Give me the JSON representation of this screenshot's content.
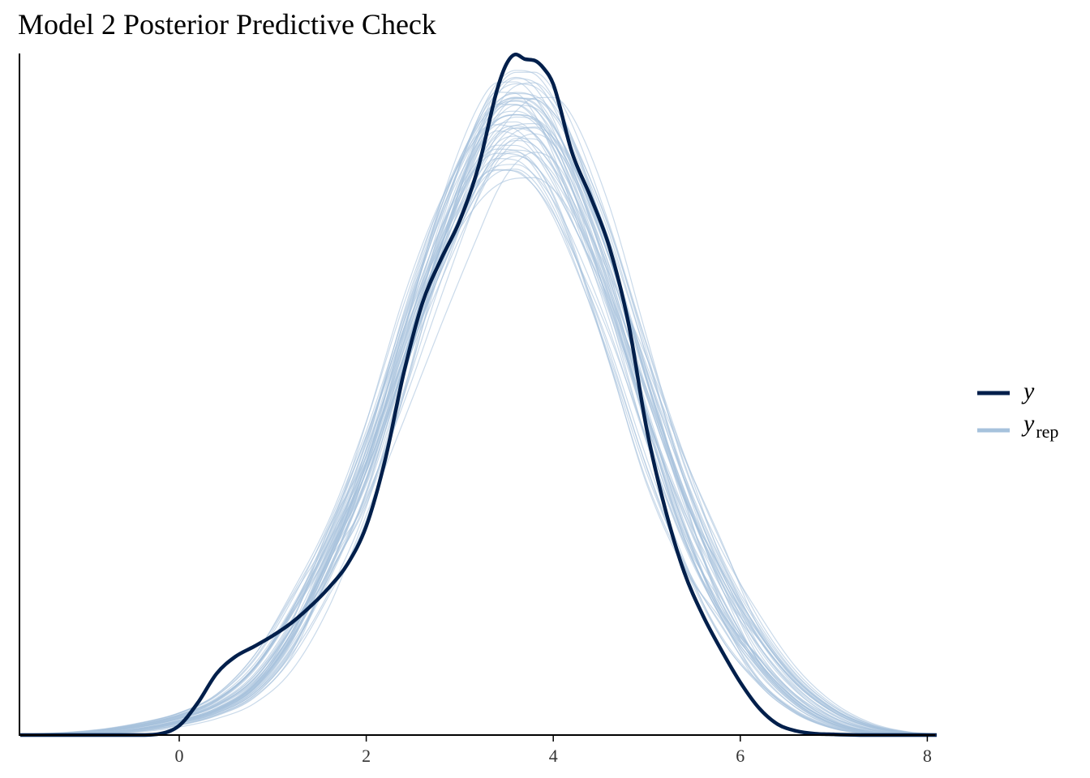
{
  "chart_data": {
    "type": "line",
    "title": "Model 2 Posterior Predictive Check",
    "xlabel": "",
    "ylabel": "",
    "xlim": [
      -1.7,
      8.1
    ],
    "ylim": [
      0,
      1.0
    ],
    "x_ticks": [
      0,
      2,
      4,
      6,
      8
    ],
    "x_tick_labels": [
      "0",
      "2",
      "4",
      "6",
      "8"
    ],
    "y_ticks_shown": false,
    "grid": false,
    "legend_position": "right",
    "legend": [
      {
        "label": "y",
        "subscript": "",
        "color": "#011f4b"
      },
      {
        "label": "y",
        "subscript": "rep",
        "color": "#a6c2dc"
      }
    ],
    "colors": {
      "y": "#011f4b",
      "y_rep": "#a6c2dc",
      "axis": "#000000"
    },
    "series": [
      {
        "name": "y",
        "role": "observed",
        "x": [
          -1.7,
          -0.4,
          -0.2,
          0.0,
          0.2,
          0.4,
          0.6,
          0.8,
          1.0,
          1.2,
          1.4,
          1.6,
          1.8,
          2.0,
          2.2,
          2.4,
          2.6,
          2.8,
          3.0,
          3.2,
          3.4,
          3.5,
          3.6,
          3.7,
          3.8,
          3.9,
          4.0,
          4.2,
          4.4,
          4.6,
          4.8,
          5.0,
          5.2,
          5.4,
          5.6,
          5.8,
          6.0,
          6.2,
          6.4,
          6.6,
          6.8,
          7.0,
          7.4,
          8.1
        ],
        "y": [
          0.0,
          0.0,
          0.002,
          0.014,
          0.048,
          0.091,
          0.116,
          0.131,
          0.147,
          0.166,
          0.19,
          0.218,
          0.253,
          0.309,
          0.406,
          0.535,
          0.639,
          0.704,
          0.761,
          0.841,
          0.955,
          0.993,
          1.007,
          1.0,
          0.998,
          0.986,
          0.963,
          0.862,
          0.796,
          0.722,
          0.612,
          0.452,
          0.333,
          0.241,
          0.177,
          0.125,
          0.078,
          0.04,
          0.016,
          0.006,
          0.002,
          0.001,
          0.0,
          0.0
        ]
      }
    ],
    "y_rep": {
      "name": "y_rep",
      "draws": 50,
      "description_points": {
        "x": [
          -1.7,
          -1.2,
          -0.8,
          -0.4,
          0.0,
          0.4,
          0.8,
          1.2,
          1.6,
          2.0,
          2.4,
          2.8,
          3.2,
          3.4,
          3.6,
          3.8,
          4.0,
          4.2,
          4.6,
          5.0,
          5.4,
          5.8,
          6.2,
          6.6,
          7.0,
          7.4,
          7.8,
          8.1
        ],
        "y_mean": [
          0.0,
          0.001,
          0.004,
          0.01,
          0.021,
          0.038,
          0.072,
          0.146,
          0.258,
          0.386,
          0.559,
          0.724,
          0.855,
          0.896,
          0.908,
          0.901,
          0.867,
          0.81,
          0.664,
          0.483,
          0.323,
          0.204,
          0.113,
          0.054,
          0.02,
          0.005,
          0.001,
          0.0
        ]
      }
    }
  }
}
